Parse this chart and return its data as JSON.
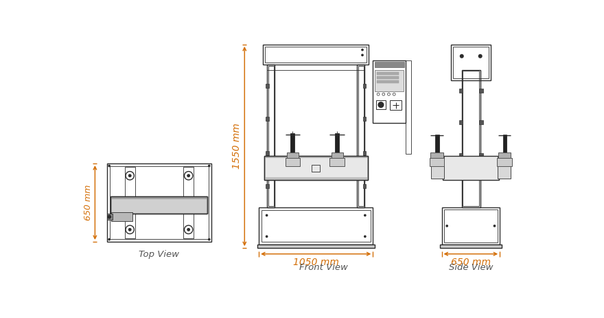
{
  "bg_color": "#ffffff",
  "lc": "#2c2c2c",
  "dc": "#d4700a",
  "tc": "#555555",
  "top_view_label": "Top View",
  "front_view_label": "Front View",
  "side_view_label": "Side View",
  "dim_650_v": "650 mm",
  "dim_1550_v": "1550 mm",
  "dim_1050_h": "1050 mm",
  "dim_650_h": "650 mm",
  "fig_width": 8.8,
  "fig_height": 4.63,
  "dpi": 100
}
